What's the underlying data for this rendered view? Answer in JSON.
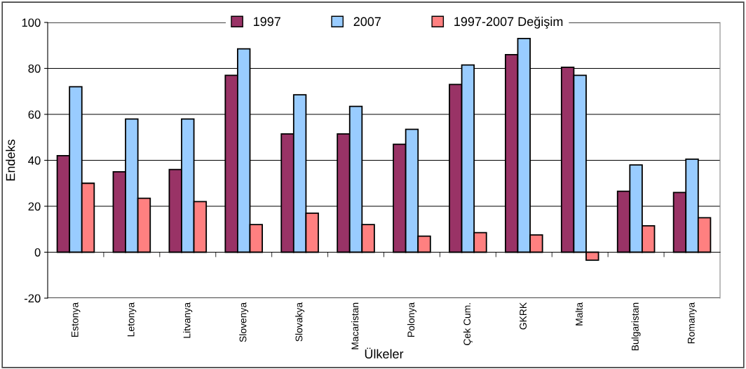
{
  "chart_data": {
    "type": "bar",
    "xlabel": "Ülkeler",
    "ylabel": "Endeks",
    "categories": [
      "Estonya",
      "Letonya",
      "Litvanya",
      "Slovenya",
      "Slovakya",
      "Macaristan",
      "Polonya",
      "Çek Cum.",
      "GKRK",
      "Malta",
      "Bulgaristan",
      "Romanya"
    ],
    "series": [
      {
        "name": "1997",
        "color": "#993366",
        "values": [
          42,
          35,
          36,
          77,
          51.5,
          51.5,
          47,
          73,
          86,
          80.5,
          26.5,
          26
        ]
      },
      {
        "name": "2007",
        "color": "#99ccff",
        "values": [
          72,
          58,
          58,
          88.5,
          68.5,
          63.5,
          53.5,
          81.5,
          93,
          77,
          38,
          40.5
        ]
      },
      {
        "name": "1997-2007 Değişim",
        "color": "#ff8080",
        "values": [
          30,
          23.5,
          22,
          12,
          17,
          12,
          7,
          8.5,
          7.5,
          -3.5,
          11.5,
          15
        ]
      }
    ],
    "ylim": [
      -20,
      100
    ],
    "yticks": [
      -20,
      0,
      20,
      40,
      60,
      80,
      100
    ],
    "grid": "y",
    "legend": "top"
  }
}
